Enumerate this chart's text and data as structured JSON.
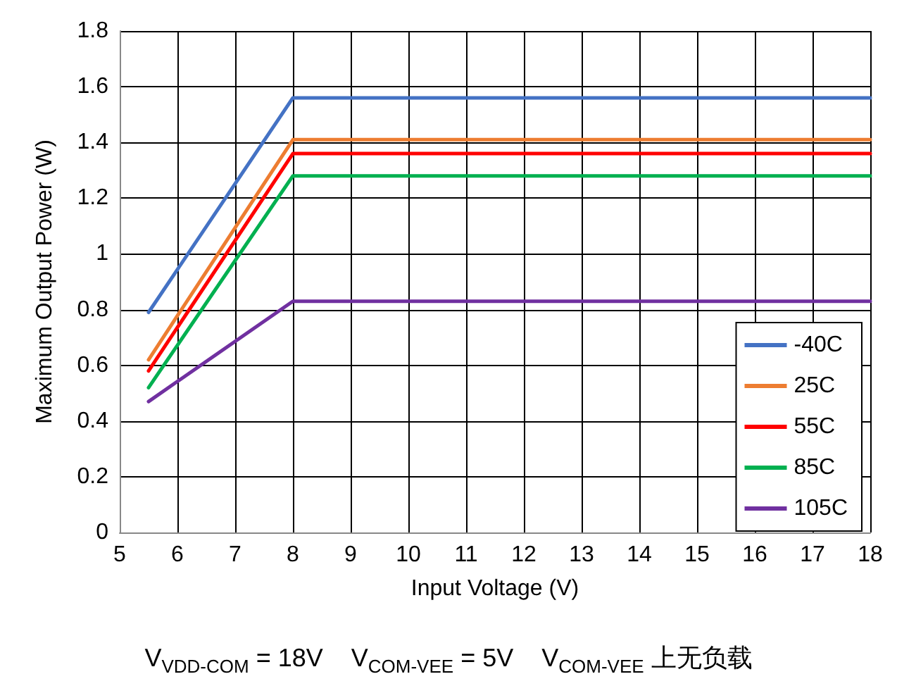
{
  "chart_data": {
    "type": "line",
    "xlabel": "Input Voltage (V)",
    "ylabel": "Maximum Output Power (W)",
    "x": [
      5.5,
      8,
      18
    ],
    "series": [
      {
        "name": "-40C",
        "color": "#4472c4",
        "values": [
          0.79,
          1.56,
          1.56
        ]
      },
      {
        "name": "25C",
        "color": "#ed7d31",
        "values": [
          0.62,
          1.41,
          1.41
        ]
      },
      {
        "name": "55C",
        "color": "#ff0000",
        "values": [
          0.58,
          1.36,
          1.36
        ]
      },
      {
        "name": "85C",
        "color": "#00b050",
        "values": [
          0.52,
          1.28,
          1.28
        ]
      },
      {
        "name": "105C",
        "color": "#7030a0",
        "values": [
          0.47,
          0.83,
          0.83
        ]
      }
    ],
    "xlim": [
      5,
      18
    ],
    "xticks": [
      5,
      6,
      7,
      8,
      9,
      10,
      11,
      12,
      13,
      14,
      15,
      16,
      17,
      18
    ],
    "ylim": [
      0,
      1.8
    ],
    "yticks": [
      0,
      0.2,
      0.4,
      0.6,
      0.8,
      1,
      1.2,
      1.4,
      1.6,
      1.8
    ],
    "grid": true,
    "legend": "bottom right",
    "marker": "none",
    "line_style": "solid",
    "annotations": [
      "V$_{VDD-COM}$ = 18V    V$_{COM-VEE}$ = 5V    V$_{COM-VEE}$ 上无负载"
    ]
  }
}
